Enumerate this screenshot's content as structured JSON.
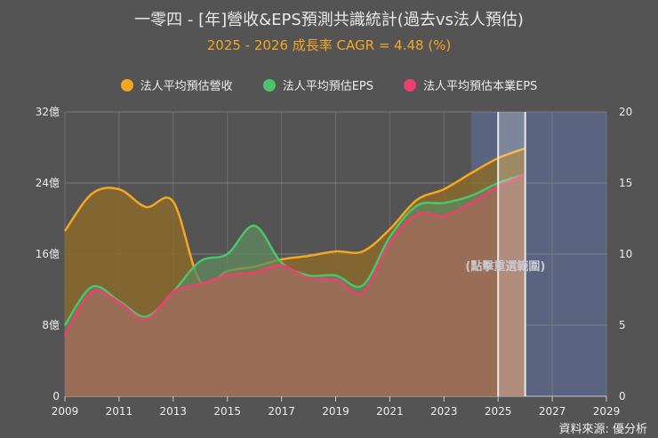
{
  "chart_data": {
    "type": "area",
    "title": "一零四 - [年]營收&EPS預測共識統計(過去vs法人預估)",
    "subtitle": "2025 - 2026 成長率 CAGR = 4.48 (%)",
    "x": [
      2009,
      2010,
      2011,
      2012,
      2013,
      2014,
      2015,
      2016,
      2017,
      2018,
      2019,
      2020,
      2021,
      2022,
      2023,
      2024,
      2025,
      2026
    ],
    "x_ticks": [
      "2009",
      "2011",
      "2013",
      "2015",
      "2017",
      "2019",
      "2021",
      "2023",
      "2025",
      "2027",
      "2029"
    ],
    "xlim": [
      2009,
      2029
    ],
    "y_left_ticks": [
      "0",
      "8億",
      "16億",
      "24億",
      "32億"
    ],
    "y_left_lim": [
      0,
      32
    ],
    "y_right_ticks": [
      "0",
      "5",
      "10",
      "15",
      "20"
    ],
    "y_right_lim": [
      0,
      20
    ],
    "grid": true,
    "legend_position": "top",
    "series": [
      {
        "name": "法人平均預估營收",
        "axis": "left",
        "color": "#f5a623",
        "values": [
          18.6,
          22.8,
          23.3,
          21.3,
          21.9,
          12.9,
          14.1,
          14.6,
          15.4,
          15.8,
          16.3,
          16.3,
          18.8,
          22.1,
          23.3,
          25.1,
          26.8,
          27.9
        ]
      },
      {
        "name": "法人平均預估EPS",
        "axis": "right",
        "color": "#4cc46e",
        "values": [
          5.0,
          7.7,
          6.7,
          5.6,
          7.35,
          9.5,
          10.0,
          12.0,
          9.4,
          8.5,
          8.5,
          7.8,
          11.2,
          13.4,
          13.6,
          14.1,
          15.0,
          15.6
        ]
      },
      {
        "name": "法人平均預估本業EPS",
        "axis": "right",
        "color": "#ee3f72",
        "values": [
          4.3,
          7.35,
          6.6,
          5.4,
          7.35,
          7.9,
          8.5,
          8.7,
          9.2,
          8.3,
          8.2,
          7.3,
          10.8,
          12.8,
          12.7,
          13.6,
          14.75,
          15.6
        ]
      }
    ],
    "forecast_region": [
      2024,
      2029
    ],
    "selected_range": [
      2025,
      2026
    ],
    "annotation": "(點擊重選範圍)"
  },
  "source": "資料來源: 優分析"
}
